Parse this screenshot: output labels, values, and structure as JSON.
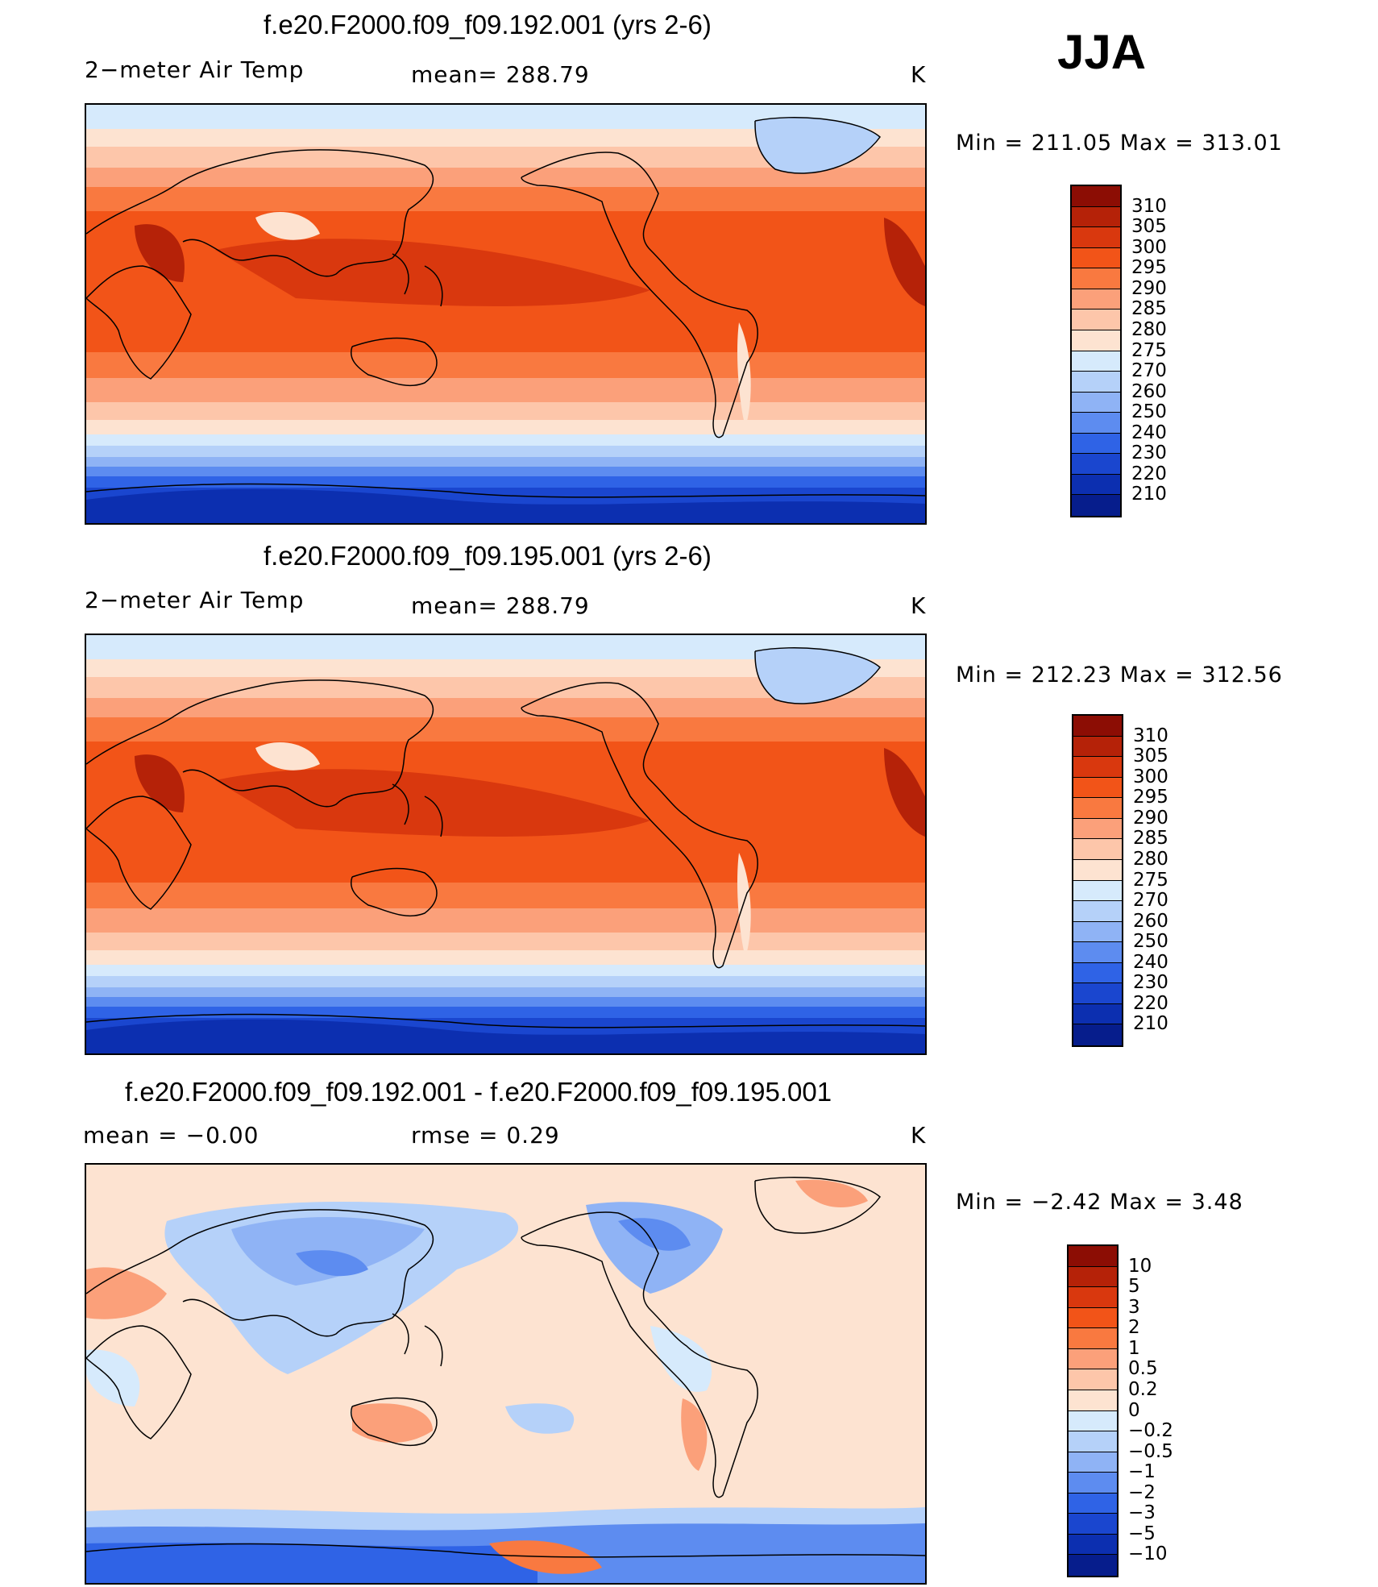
{
  "season": "JJA",
  "panels": [
    {
      "title": "f.e20.F2000.f09_f09.192.001 (yrs 2-6)",
      "left_label": "2−meter Air Temp",
      "center_label": "mean= 288.79",
      "units": "K",
      "minmax": "Min  =  211.05  Max  =  313.01",
      "colorbar": {
        "levels": [
          "310",
          "305",
          "300",
          "295",
          "290",
          "285",
          "280",
          "275",
          "270",
          "260",
          "250",
          "240",
          "230",
          "220",
          "210"
        ],
        "colors": [
          "#8c0d04",
          "#b52208",
          "#d9380e",
          "#f25418",
          "#f97940",
          "#fba07a",
          "#fdc6aa",
          "#fde3d1",
          "#d6eafc",
          "#b5d1f9",
          "#8fb3f5",
          "#5d8cf0",
          "#2f63e6",
          "#1a46cf",
          "#0c2fb0",
          "#061d8c"
        ]
      }
    },
    {
      "title": "f.e20.F2000.f09_f09.195.001 (yrs 2-6)",
      "left_label": "2−meter Air Temp",
      "center_label": "mean= 288.79",
      "units": "K",
      "minmax": "Min  =  212.23  Max  =  312.56",
      "colorbar": {
        "levels": [
          "310",
          "305",
          "300",
          "295",
          "290",
          "285",
          "280",
          "275",
          "270",
          "260",
          "250",
          "240",
          "230",
          "220",
          "210"
        ],
        "colors": [
          "#8c0d04",
          "#b52208",
          "#d9380e",
          "#f25418",
          "#f97940",
          "#fba07a",
          "#fdc6aa",
          "#fde3d1",
          "#d6eafc",
          "#b5d1f9",
          "#8fb3f5",
          "#5d8cf0",
          "#2f63e6",
          "#1a46cf",
          "#0c2fb0",
          "#061d8c"
        ]
      }
    },
    {
      "title": "f.e20.F2000.f09_f09.192.001 - f.e20.F2000.f09_f09.195.001",
      "left_label": "mean  =    −0.00",
      "center_label": "rmse  =     0.29",
      "units": "K",
      "minmax": "Min  =    −2.42  Max  =     3.48",
      "colorbar": {
        "levels": [
          "10",
          "5",
          "3",
          "2",
          "1",
          "0.5",
          "0.2",
          "0",
          "−0.2",
          "−0.5",
          "−1",
          "−2",
          "−3",
          "−5",
          "−10"
        ],
        "colors": [
          "#8c0d04",
          "#b52208",
          "#d9380e",
          "#f25418",
          "#f97940",
          "#fba07a",
          "#fdc6aa",
          "#fde3d1",
          "#d6eafc",
          "#b5d1f9",
          "#8fb3f5",
          "#5d8cf0",
          "#2f63e6",
          "#1a46cf",
          "#0c2fb0",
          "#061d8c"
        ]
      }
    }
  ]
}
